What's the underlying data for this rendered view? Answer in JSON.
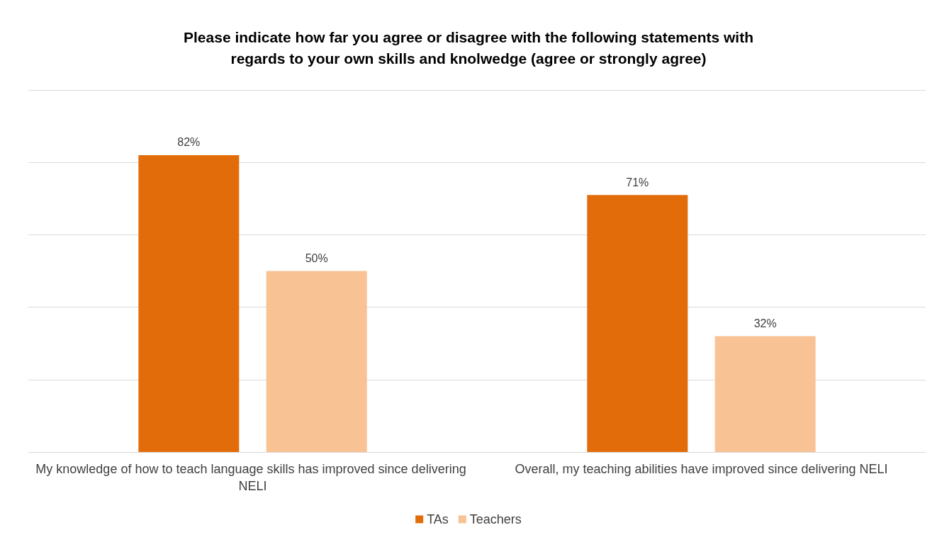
{
  "chart_data": {
    "type": "bar",
    "title": "Please indicate how far you agree or disagree with the following statements with\nregards to your own skills and knolwedge (agree or strongly agree)",
    "categories": [
      "My knowledge of how to teach language skills has improved since delivering NELI",
      "Overall, my teaching abilities have improved since delivering NELI"
    ],
    "series": [
      {
        "name": "TAs",
        "color": "#e36c0a",
        "values": [
          82,
          71
        ],
        "value_labels": [
          "82%",
          "71%"
        ]
      },
      {
        "name": "Teachers",
        "color": "#f9c294",
        "values": [
          50,
          32
        ],
        "value_labels": [
          "50%",
          "32%"
        ]
      }
    ],
    "grid": "y",
    "legend": "bottom",
    "tick_labels": "x"
  }
}
